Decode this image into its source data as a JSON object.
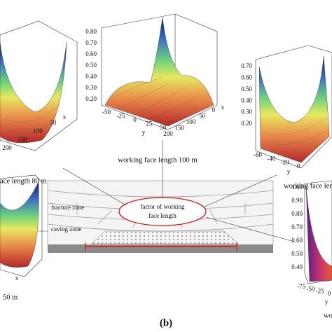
{
  "panels": [
    {
      "caption": "working  face length  100 m",
      "z_ticks": [
        "0.80",
        "0.70",
        "0.60",
        "0.50",
        "0.40",
        "0.30",
        "0.20"
      ],
      "y_ticks": [
        "-50",
        "-25",
        "0",
        "25",
        "50"
      ],
      "y_label": "y",
      "x_ticks": [
        "200",
        "150",
        "100",
        "50",
        "0"
      ],
      "x_label": "x"
    },
    {
      "caption": "ace length  80 m",
      "x_ticks": [
        "200",
        "150",
        "100",
        "50"
      ],
      "x_label": "x"
    },
    {
      "caption": "working  face len",
      "z_ticks": [
        "0.70",
        "0.60",
        "0.50",
        "0.40",
        "0.30",
        "0.20"
      ],
      "y_ticks": [
        "-60",
        "-40",
        "-20",
        "0"
      ],
      "y_label": "y"
    },
    {
      "caption": "50 m",
      "x_label": "x"
    },
    {
      "caption": "wo",
      "z_ticks": [
        "1.00",
        "0.90",
        "0.80",
        "0.70",
        "0.60",
        "0.50",
        "0.40"
      ],
      "y_ticks": [
        "-75",
        "-50",
        "-25",
        "0"
      ],
      "y_label": "y"
    }
  ],
  "diagram": {
    "zones": [
      "fracture zone",
      "caving zone"
    ],
    "factor": [
      "factor of working",
      "face length"
    ]
  },
  "label": "(b)"
}
